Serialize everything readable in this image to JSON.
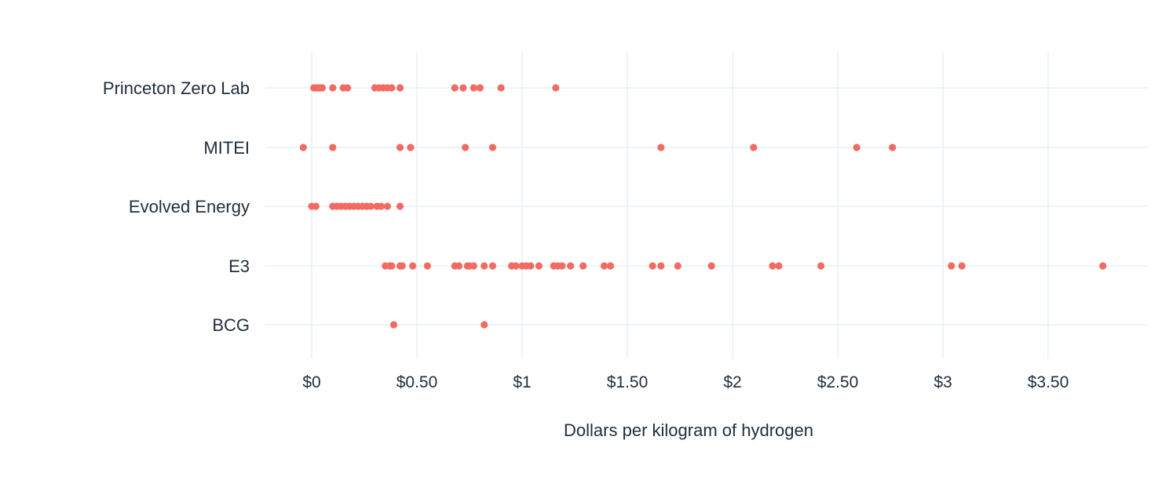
{
  "chart_data": {
    "type": "scatter",
    "title": "",
    "xlabel": "Dollars per kilogram of hydrogen",
    "ylabel": "",
    "xlim": [
      -0.2,
      3.95
    ],
    "x_ticks": [
      0,
      0.5,
      1,
      1.5,
      2,
      2.5,
      3,
      3.5
    ],
    "x_tick_labels": [
      "$0",
      "$0.50",
      "$1",
      "$1.50",
      "$2",
      "$2.50",
      "$3",
      "$3.50"
    ],
    "grid": "on",
    "legend": "none",
    "point_color": "#f26b63",
    "categories": [
      "Princeton Zero Lab",
      "MITEI",
      "Evolved Energy",
      "E3",
      "BCG"
    ],
    "series": [
      {
        "category": "Princeton Zero Lab",
        "x": [
          0.01,
          0.02,
          0.03,
          0.04,
          0.05,
          0.1,
          0.15,
          0.17,
          0.3,
          0.32,
          0.34,
          0.36,
          0.38,
          0.42,
          0.68,
          0.72,
          0.77,
          0.8,
          0.9,
          1.16
        ]
      },
      {
        "category": "MITEI",
        "x": [
          -0.04,
          0.1,
          0.42,
          0.47,
          0.73,
          0.86,
          1.66,
          2.1,
          2.59,
          2.76
        ]
      },
      {
        "category": "Evolved Energy",
        "x": [
          0.0,
          0.02,
          0.1,
          0.12,
          0.14,
          0.16,
          0.18,
          0.2,
          0.22,
          0.24,
          0.26,
          0.28,
          0.31,
          0.33,
          0.36,
          0.42
        ]
      },
      {
        "category": "E3",
        "x": [
          0.35,
          0.37,
          0.38,
          0.42,
          0.43,
          0.48,
          0.55,
          0.68,
          0.7,
          0.74,
          0.75,
          0.77,
          0.82,
          0.86,
          0.95,
          0.97,
          1.0,
          1.02,
          1.04,
          1.08,
          1.15,
          1.17,
          1.19,
          1.23,
          1.29,
          1.39,
          1.42,
          1.62,
          1.66,
          1.74,
          1.9,
          2.19,
          2.22,
          2.42,
          3.04,
          3.09,
          3.76
        ]
      },
      {
        "category": "BCG",
        "x": [
          0.39,
          0.82
        ]
      }
    ]
  }
}
